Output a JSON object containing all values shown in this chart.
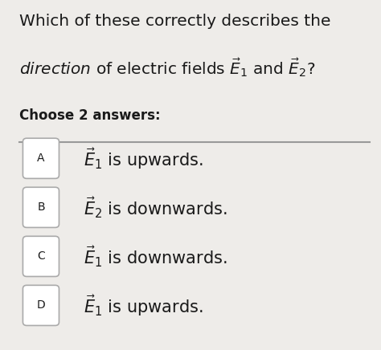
{
  "title_line1": "Which of these correctly describes the",
  "title_line2": "$\\mathit{direction}$ of electric fields $\\vec{E}_1$ and $\\vec{E}_2$?",
  "choose_text": "Choose 2 answers:",
  "option_labels": [
    "A",
    "B",
    "C",
    "D"
  ],
  "option_texts": [
    "$\\vec{E}_1$ is upwards.",
    "$\\vec{E}_2$ is downwards.",
    "$\\vec{E}_1$ is downwards.",
    "$\\vec{E}_1$ is upwards."
  ],
  "bg_color": "#eeece9",
  "box_color": "#ffffff",
  "box_border_color": "#aaaaaa",
  "text_color": "#1a1a1a",
  "line_color": "#999999",
  "title_fontsize": 14.5,
  "option_fontsize": 15,
  "label_fontsize": 10,
  "choose_fontsize": 12
}
